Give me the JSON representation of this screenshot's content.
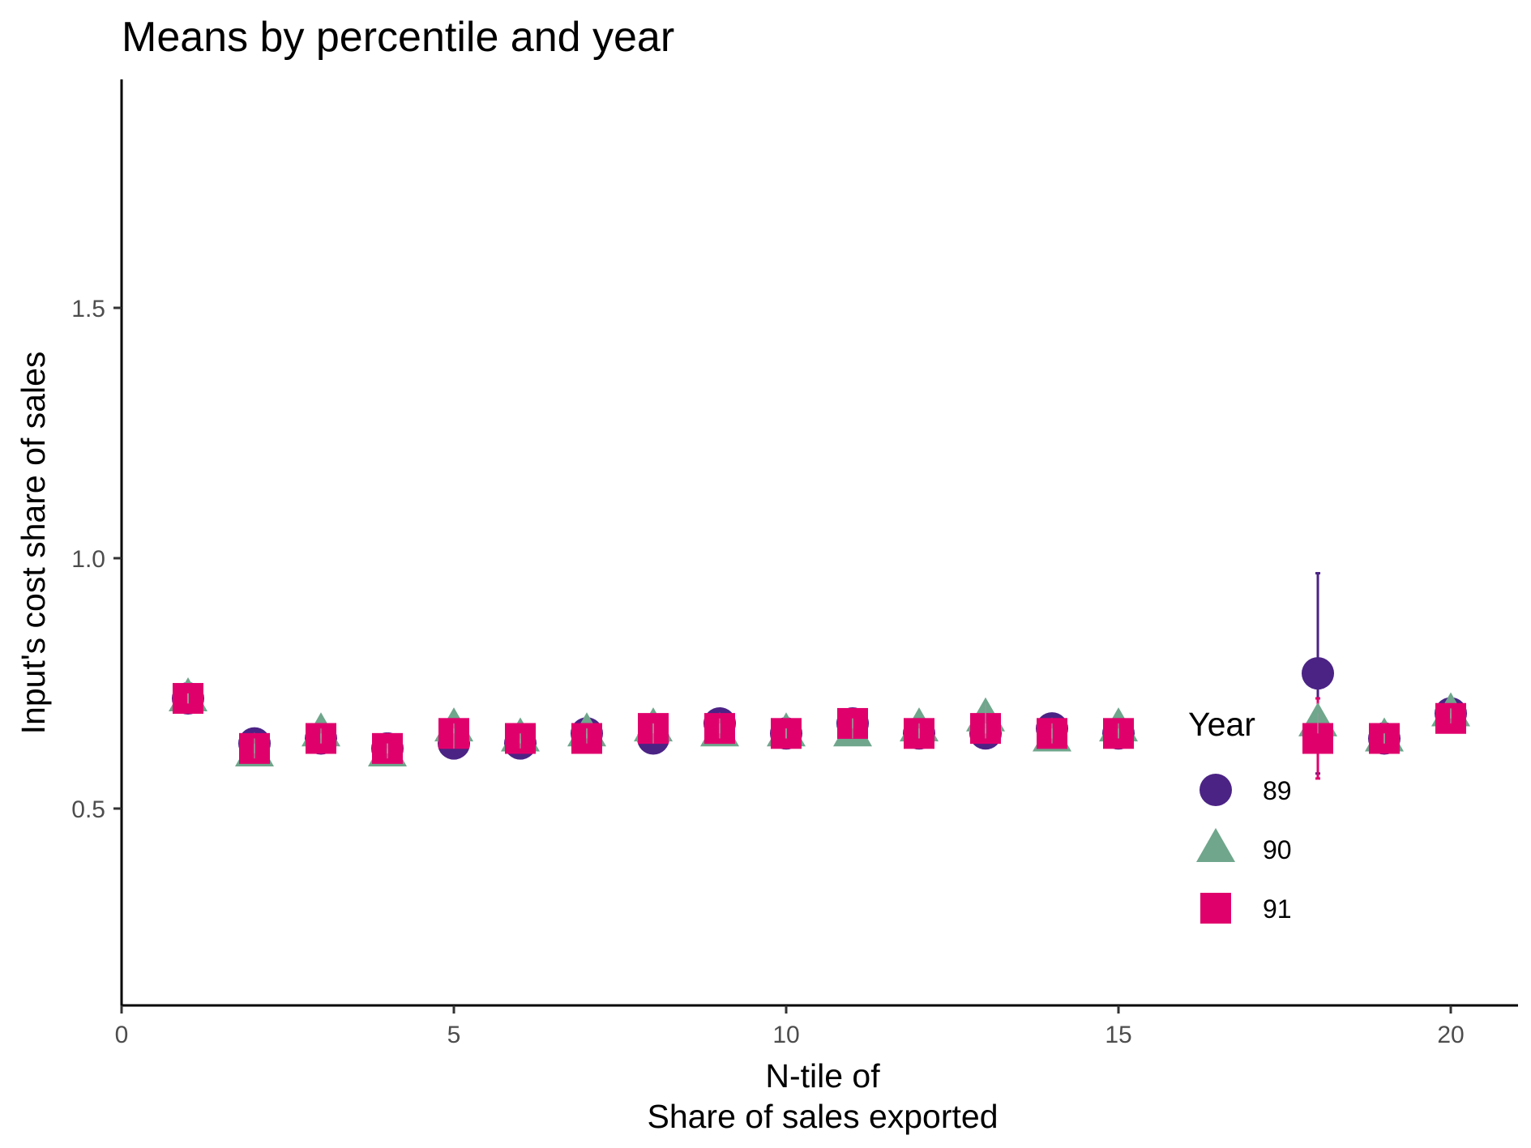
{
  "chart_data": {
    "type": "scatter",
    "title": "Means by percentile and year",
    "xlabel_line1": "N-tile of",
    "xlabel_line2": "Share of sales exported",
    "ylabel": "Input's cost share of sales",
    "xlim": [
      0,
      21
    ],
    "ylim": [
      0.15,
      1.9
    ],
    "xticks": [
      0,
      5,
      10,
      15,
      20
    ],
    "xtick_labels": [
      "0",
      "5",
      "10",
      "15",
      "20"
    ],
    "yticks": [
      0.5,
      1.0,
      1.5
    ],
    "ytick_labels": [
      "0.5",
      "1.0",
      "1.5"
    ],
    "grid": false,
    "legend": {
      "title": "Year",
      "position": "right-inside"
    },
    "x": [
      1,
      2,
      3,
      4,
      5,
      6,
      7,
      8,
      9,
      10,
      11,
      12,
      13,
      14,
      15,
      16,
      17,
      18,
      19,
      20
    ],
    "series": [
      {
        "name": "89",
        "shape": "circle",
        "color": "#4B2385",
        "values": [
          0.72,
          0.63,
          0.64,
          0.62,
          0.63,
          0.63,
          0.65,
          0.64,
          0.67,
          0.65,
          0.67,
          0.65,
          0.65,
          0.66,
          0.65,
          null,
          null,
          0.77,
          0.64,
          0.69
        ],
        "err": [
          0.01,
          0.01,
          0.01,
          0.01,
          0.01,
          0.01,
          0.01,
          0.01,
          0.01,
          0.01,
          0.01,
          0.01,
          0.01,
          0.01,
          0.01,
          null,
          null,
          0.2,
          0.01,
          0.01
        ]
      },
      {
        "name": "90",
        "shape": "triangle",
        "color": "#6FA68C",
        "values": [
          0.72,
          0.61,
          0.65,
          0.61,
          0.66,
          0.64,
          0.65,
          0.66,
          0.65,
          0.65,
          0.65,
          0.66,
          0.68,
          0.64,
          0.66,
          null,
          null,
          0.67,
          0.64,
          0.69
        ],
        "err": [
          0.01,
          0.01,
          0.01,
          0.01,
          0.01,
          0.01,
          0.01,
          0.01,
          0.01,
          0.01,
          0.01,
          0.01,
          0.03,
          0.01,
          0.01,
          null,
          null,
          0.02,
          0.01,
          0.01
        ]
      },
      {
        "name": "91",
        "shape": "square",
        "color": "#E0006C",
        "values": [
          0.72,
          0.62,
          0.64,
          0.62,
          0.65,
          0.64,
          0.64,
          0.66,
          0.66,
          0.65,
          0.67,
          0.65,
          0.66,
          0.65,
          0.65,
          null,
          null,
          0.64,
          0.64,
          0.68
        ],
        "err": [
          0.01,
          0.01,
          0.01,
          0.01,
          0.01,
          0.01,
          0.01,
          0.01,
          0.01,
          0.01,
          0.01,
          0.01,
          0.01,
          0.01,
          0.01,
          null,
          null,
          0.08,
          0.01,
          0.01
        ]
      }
    ]
  }
}
